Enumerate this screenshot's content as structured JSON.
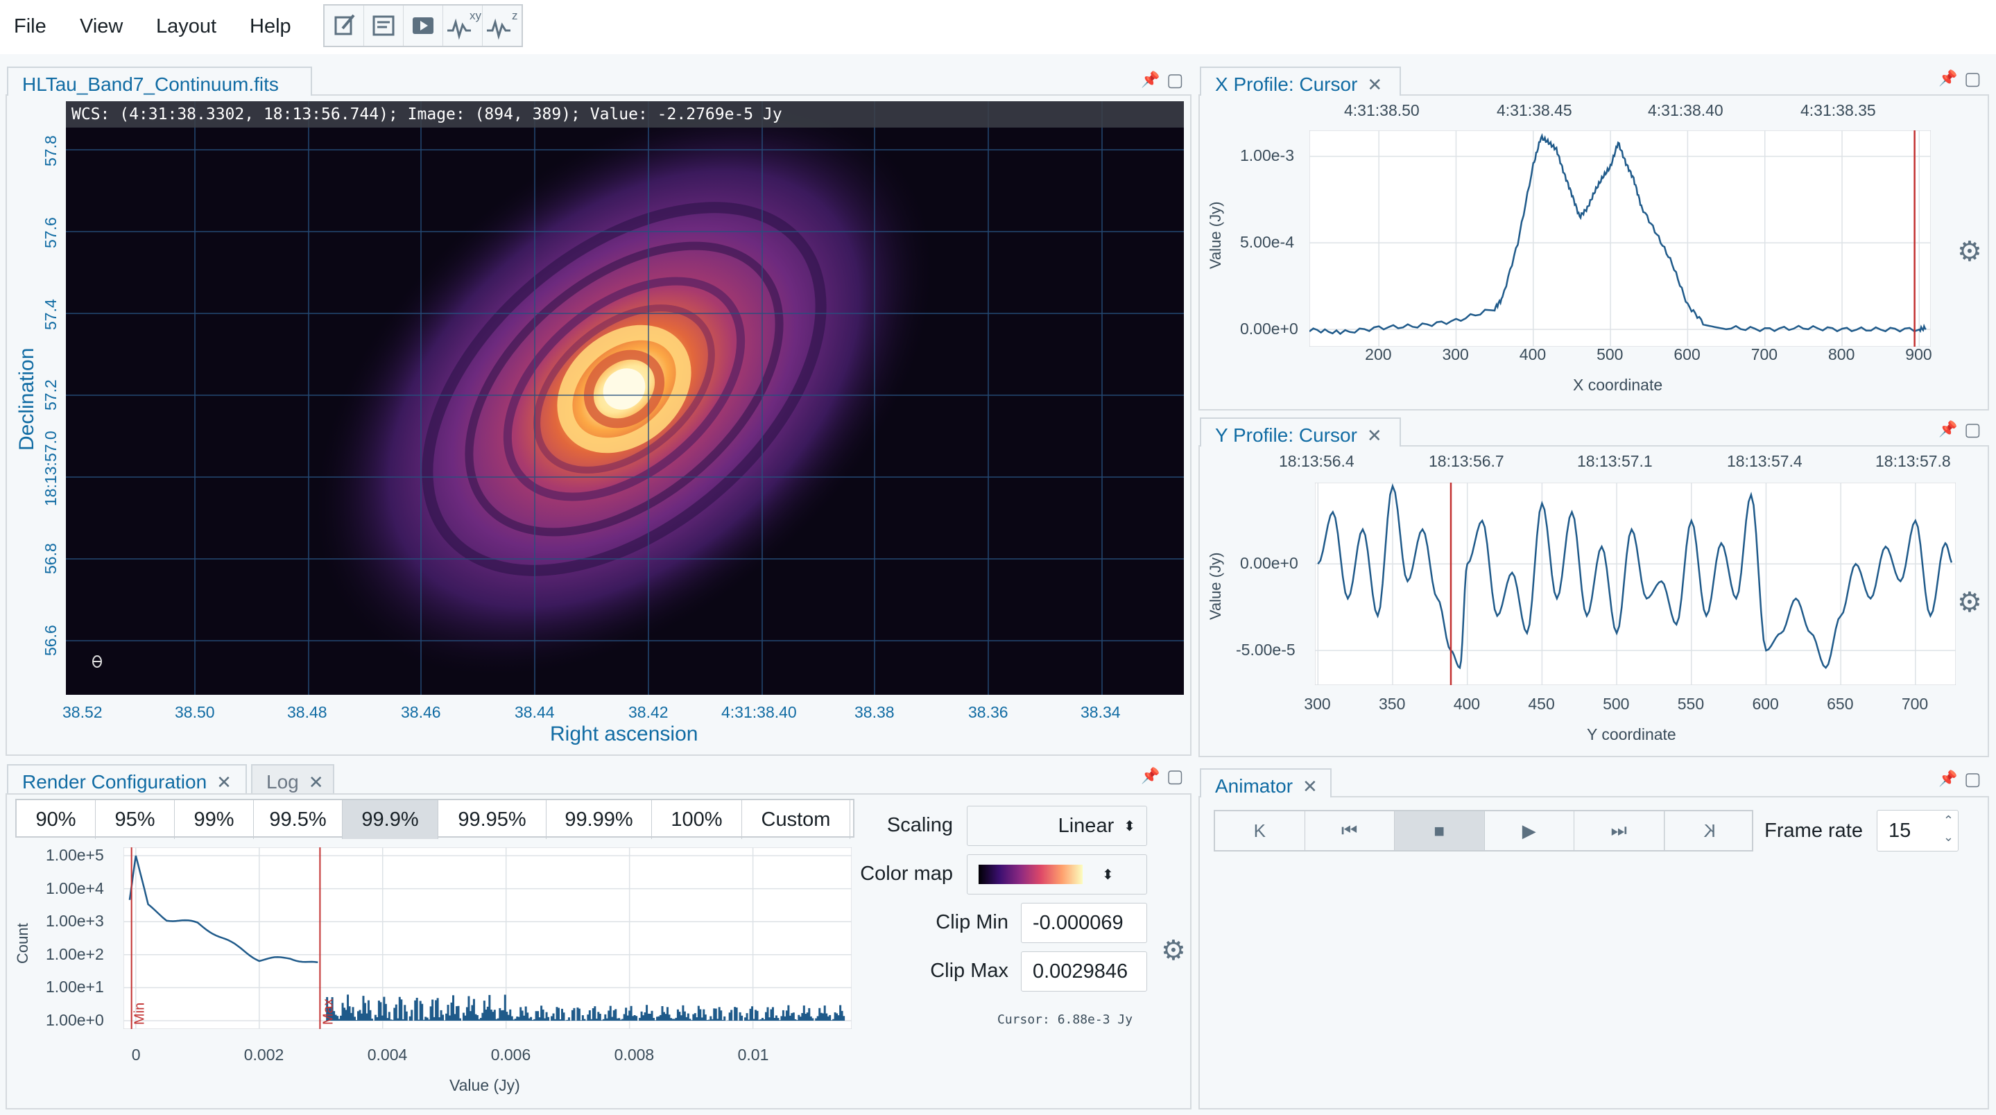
{
  "menu": [
    "File",
    "View",
    "Layout",
    "Help"
  ],
  "toolbar": {
    "xy_sup": "xy",
    "z_sup": "z"
  },
  "image_panel": {
    "tab": "HLTau_Band7_Continuum.fits",
    "cursor_info": "WCS: (4:31:38.3302, 18:13:56.744); Image: (894, 389); Value: -2.2769e-5 Jy",
    "x_ticks": [
      "38.52",
      "38.50",
      "38.48",
      "38.46",
      "38.44",
      "38.42",
      "4:31:38.40",
      "38.38",
      "38.36",
      "38.34"
    ],
    "y_ticks": [
      "57.8",
      "57.6",
      "57.4",
      "57.2",
      "18:13:57.0",
      "56.8",
      "56.6"
    ],
    "xlabel": "Right ascension",
    "ylabel": "Declination"
  },
  "x_profile": {
    "tab": "X Profile: Cursor",
    "top_ticks": [
      "4:31:38.50",
      "4:31:38.45",
      "4:31:38.40",
      "4:31:38.35"
    ],
    "xticks": [
      "200",
      "300",
      "400",
      "500",
      "600",
      "700",
      "800",
      "900"
    ],
    "yticks": [
      "1.00e-3",
      "5.00e-4",
      "0.00e+0"
    ],
    "xlabel": "X coordinate",
    "ylabel": "Value (Jy)"
  },
  "y_profile": {
    "tab": "Y Profile: Cursor",
    "top_ticks": [
      "18:13:56.4",
      "18:13:56.7",
      "18:13:57.1",
      "18:13:57.4",
      "18:13:57.8"
    ],
    "xticks": [
      "300",
      "350",
      "400",
      "450",
      "500",
      "550",
      "600",
      "650",
      "700"
    ],
    "yticks": [
      "0.00e+0",
      "-5.00e-5"
    ],
    "xlabel": "Y coordinate",
    "ylabel": "Value (Jy)"
  },
  "render_config": {
    "tab": "Render Configuration",
    "tab2": "Log",
    "percentiles": [
      "90%",
      "95%",
      "99%",
      "99.5%",
      "99.9%",
      "99.95%",
      "99.99%",
      "100%",
      "Custom"
    ],
    "active_percentile": "99.9%",
    "hist_yticks": [
      "1.00e+5",
      "1.00e+4",
      "1.00e+3",
      "1.00e+2",
      "1.00e+1",
      "1.00e+0"
    ],
    "hist_xticks": [
      "0",
      "0.002",
      "0.004",
      "0.006",
      "0.008",
      "0.01"
    ],
    "hist_xlabel": "Value (Jy)",
    "hist_ylabel": "Count",
    "min_marker": "Min",
    "max_marker": "Max",
    "scaling_label": "Scaling",
    "scaling_value": "Linear",
    "colormap_label": "Color map",
    "clipmin_label": "Clip Min",
    "clipmin_value": "-0.000069",
    "clipmax_label": "Clip Max",
    "clipmax_value": "0.0029846",
    "cursor_text": "Cursor: 6.88e-3 Jy"
  },
  "animator": {
    "tab": "Animator",
    "buttons": [
      "K",
      "⏮",
      "■",
      "▶",
      "⏭",
      "K"
    ],
    "framerate_label": "Frame rate",
    "framerate_value": "15"
  },
  "colors": {
    "accent": "#106ba3",
    "plot_line": "#1f5a8a",
    "marker": "#c23030"
  },
  "chart_data": [
    {
      "type": "line",
      "title": "X Profile: Cursor",
      "xlabel": "X coordinate",
      "ylabel": "Value (Jy)",
      "xlim": [
        110,
        915
      ],
      "ylim": [
        -0.0001,
        0.00115
      ],
      "x": [
        110,
        150,
        200,
        250,
        300,
        350,
        360,
        380,
        400,
        410,
        420,
        430,
        440,
        450,
        460,
        470,
        480,
        490,
        500,
        510,
        520,
        530,
        540,
        560,
        580,
        600,
        620,
        650,
        700,
        750,
        800,
        850,
        900,
        910
      ],
      "values": [
        0.0,
        -2e-05,
        1e-05,
        2e-05,
        5e-05,
        0.00012,
        0.00018,
        0.0005,
        0.00095,
        0.00111,
        0.00108,
        0.00104,
        0.0009,
        0.00078,
        0.00065,
        0.0007,
        0.0008,
        0.00088,
        0.00094,
        0.00108,
        0.00096,
        0.00087,
        0.00071,
        0.00055,
        0.00038,
        0.00014,
        4e-05,
        1e-05,
        0.0,
        1e-05,
        0.0,
        0.0,
        0.0,
        1e-05
      ],
      "cursor_marker_x": 894
    },
    {
      "type": "line",
      "title": "Y Profile: Cursor",
      "xlabel": "Y coordinate",
      "ylabel": "Value (Jy)",
      "xlim": [
        298,
        727
      ],
      "ylim": [
        -7e-05,
        4.7e-05
      ],
      "x": [
        300,
        310,
        320,
        330,
        340,
        350,
        360,
        370,
        380,
        389,
        395,
        400,
        410,
        420,
        430,
        440,
        450,
        460,
        470,
        480,
        490,
        500,
        510,
        520,
        530,
        540,
        550,
        560,
        570,
        580,
        590,
        600,
        610,
        620,
        630,
        640,
        650,
        660,
        670,
        680,
        690,
        700,
        710,
        720,
        725
      ],
      "values": [
        0.0,
        3e-05,
        -2e-05,
        2e-05,
        -3e-05,
        4.5e-05,
        -1e-05,
        2e-05,
        -2e-05,
        -5e-05,
        -6e-05,
        0.0,
        2.5e-05,
        -3e-05,
        -5e-06,
        -4e-05,
        3.5e-05,
        -2e-05,
        3e-05,
        -3e-05,
        1e-05,
        -4e-05,
        2e-05,
        -2e-05,
        -1e-05,
        -3.5e-05,
        2.5e-05,
        -3e-05,
        1.2e-05,
        -2e-05,
        4e-05,
        -5e-05,
        -4e-05,
        -2e-05,
        -4e-05,
        -6e-05,
        -3e-05,
        0.0,
        -2e-05,
        1e-05,
        -1e-05,
        2.5e-05,
        -3e-05,
        1.2e-05,
        0.0
      ],
      "cursor_marker_x": 389
    },
    {
      "type": "bar",
      "title": "",
      "xlabel": "Value (Jy)",
      "ylabel": "Count",
      "xlim": [
        -0.0002,
        0.0116
      ],
      "log_y": true,
      "ylim": [
        1,
        100000
      ],
      "x": [
        -0.0001,
        0.0,
        0.0002,
        0.0005,
        0.001,
        0.0015,
        0.002,
        0.0025,
        0.003,
        0.0032,
        0.004,
        0.005,
        0.006,
        0.007,
        0.008,
        0.009,
        0.01,
        0.011,
        0.0115
      ],
      "values": [
        5000,
        100000,
        3000,
        1200,
        900,
        250,
        70,
        80,
        50,
        3,
        2,
        2,
        2,
        1.5,
        1.5,
        1.3,
        1.3,
        1.2,
        1.1
      ],
      "min_marker": -6.9e-05,
      "max_marker": 0.0029846
    }
  ]
}
